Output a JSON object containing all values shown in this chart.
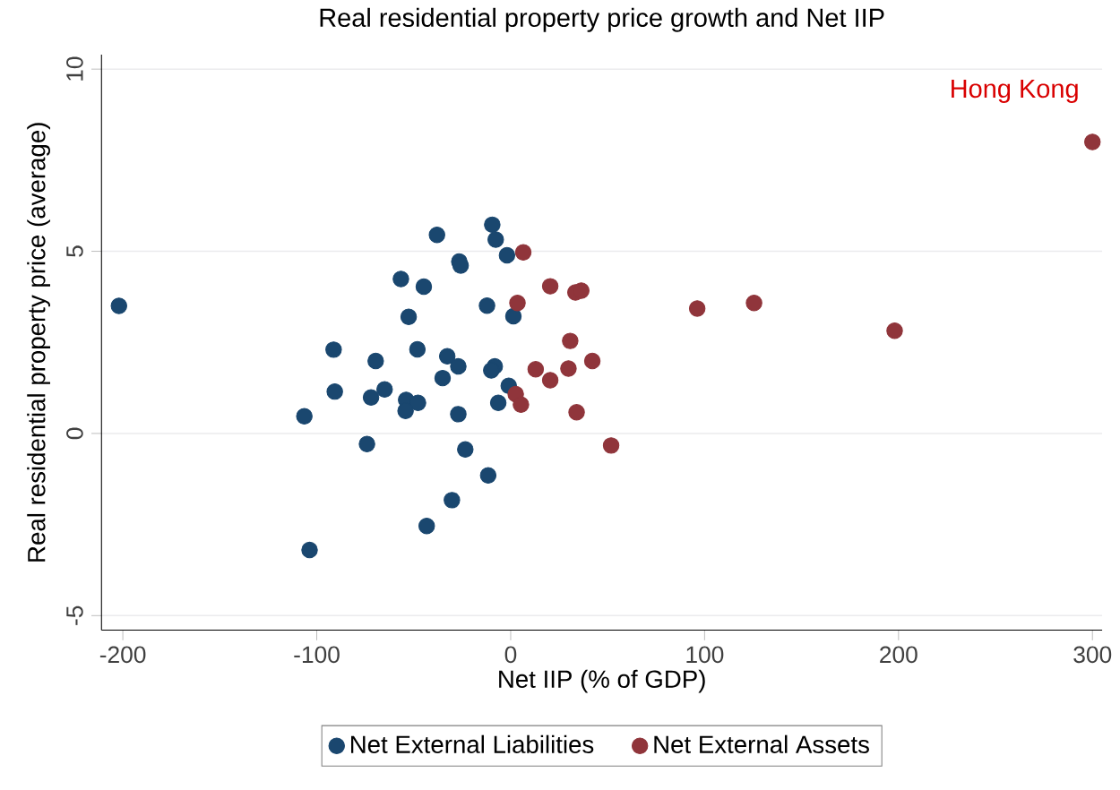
{
  "chart_data": {
    "type": "scatter",
    "title": "Real residential property price growth and Net IIP",
    "xlabel": "Net IIP (% of GDP)",
    "ylabel": "Real residential property price (average)",
    "xlim": [
      -211,
      305
    ],
    "ylim": [
      -5.4,
      10.4
    ],
    "xticks": [
      -200,
      -100,
      0,
      100,
      200,
      300
    ],
    "yticks": [
      -5,
      0,
      5,
      10
    ],
    "grid": "y",
    "legend": "bottom",
    "marker": "circle",
    "annotations": [
      {
        "text": "Hong Kong",
        "x": 300,
        "y": 8
      }
    ],
    "series": [
      {
        "name": "Net External Liabilities",
        "color": "#1a476f",
        "x": [
          -202,
          -38,
          -9.5,
          -7.7,
          -1.9,
          -26.5,
          -25.8,
          -56.6,
          -44.8,
          -12.2,
          1.4,
          -52.6,
          -91.3,
          -48.1,
          -69.6,
          -32.7,
          -27,
          -8.2,
          -10,
          -35.1,
          -1,
          -90.7,
          -65,
          -72,
          -53.9,
          -47.8,
          -54.2,
          -6.4,
          -27,
          -106.4,
          -74.1,
          -23.4,
          -11.6,
          -30.3,
          -43.3,
          -103.7
        ],
        "values": [
          3.5,
          5.45,
          5.73,
          5.32,
          4.89,
          4.72,
          4.61,
          4.24,
          4.03,
          3.51,
          3.22,
          3.2,
          2.3,
          2.31,
          1.99,
          2.12,
          1.84,
          1.84,
          1.73,
          1.52,
          1.31,
          1.15,
          1.21,
          0.99,
          0.92,
          0.84,
          0.62,
          0.84,
          0.53,
          0.47,
          -0.29,
          -0.44,
          -1.15,
          -1.83,
          -2.54,
          -3.2
        ]
      },
      {
        "name": "Net External Assets",
        "color": "#90353b",
        "x": [
          6.5,
          20.4,
          33.4,
          36.4,
          3.5,
          96.2,
          125.5,
          198,
          300,
          30.7,
          12.9,
          20.4,
          29.8,
          42.1,
          2.6,
          5.3,
          34,
          51.8
        ],
        "values": [
          4.97,
          4.04,
          3.87,
          3.92,
          3.58,
          3.43,
          3.58,
          2.82,
          8.0,
          2.54,
          1.76,
          1.46,
          1.78,
          1.99,
          1.08,
          0.79,
          0.58,
          -0.33
        ]
      }
    ]
  }
}
